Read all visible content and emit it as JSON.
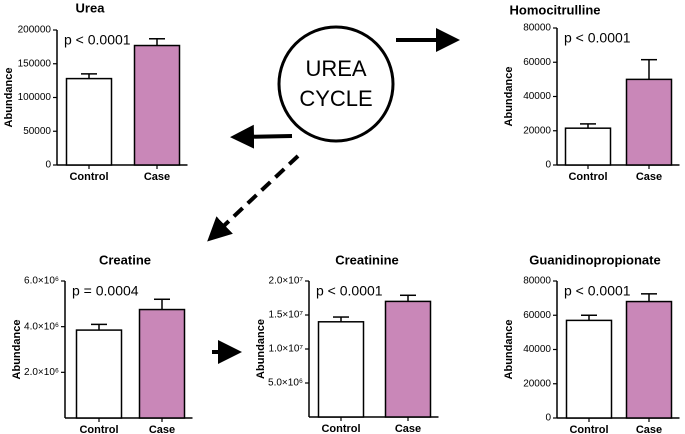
{
  "chart_data": [
    {
      "type": "bar",
      "title": "Urea",
      "ylabel": "Abundance",
      "annotation": "p < 0.0001",
      "categories": [
        "Control",
        "Case"
      ],
      "values": [
        128000,
        177000
      ],
      "errors": [
        7000,
        10000
      ],
      "colors": [
        "#ffffff",
        "#c987b8"
      ],
      "ylim": [
        0,
        200000
      ],
      "yticks": [
        0,
        50000,
        100000,
        150000,
        200000
      ]
    },
    {
      "type": "bar",
      "title": "Homocitrulline",
      "ylabel": "Abundance",
      "annotation": "p < 0.0001",
      "categories": [
        "Control",
        "Case"
      ],
      "values": [
        21500,
        50000
      ],
      "errors": [
        2500,
        11500
      ],
      "colors": [
        "#ffffff",
        "#c987b8"
      ],
      "ylim": [
        0,
        80000
      ],
      "yticks": [
        0,
        20000,
        40000,
        60000,
        80000
      ]
    },
    {
      "type": "bar",
      "title": "Creatine",
      "ylabel": "Abundance",
      "annotation": "p = 0.0004",
      "categories": [
        "Control",
        "Case"
      ],
      "values": [
        3850000,
        4750000
      ],
      "errors": [
        250000,
        450000
      ],
      "colors": [
        "#ffffff",
        "#c987b8"
      ],
      "ylim": [
        0,
        6000000
      ],
      "yticks": [
        {
          "value": 2000000,
          "label": "2.0×10⁶"
        },
        {
          "value": 4000000,
          "label": "4.0×10⁶"
        },
        {
          "value": 6000000,
          "label": "6.0×10⁶"
        }
      ]
    },
    {
      "type": "bar",
      "title": "Creatinine",
      "ylabel": "Abundance",
      "annotation": "p < 0.0001",
      "categories": [
        "Control",
        "Case"
      ],
      "values": [
        14000000,
        17000000
      ],
      "errors": [
        700000,
        900000
      ],
      "colors": [
        "#ffffff",
        "#c987b8"
      ],
      "ylim": [
        0,
        20000000
      ],
      "yticks": [
        {
          "value": 5000000,
          "label": "5.0×10⁶"
        },
        {
          "value": 10000000,
          "label": "1.0×10⁷"
        },
        {
          "value": 15000000,
          "label": "1.5×10⁷"
        },
        {
          "value": 20000000,
          "label": "2.0×10⁷"
        }
      ]
    },
    {
      "type": "bar",
      "title": "Guanidinopropionate",
      "ylabel": "Abundance",
      "annotation": "p < 0.0001",
      "categories": [
        "Control",
        "Case"
      ],
      "values": [
        57000,
        68000
      ],
      "errors": [
        3000,
        4500
      ],
      "colors": [
        "#ffffff",
        "#c987b8"
      ],
      "ylim": [
        0,
        80000
      ],
      "yticks": [
        0,
        20000,
        40000,
        60000,
        80000
      ]
    }
  ],
  "diagram": {
    "label_lines": [
      "UREA",
      "CYCLE"
    ]
  }
}
